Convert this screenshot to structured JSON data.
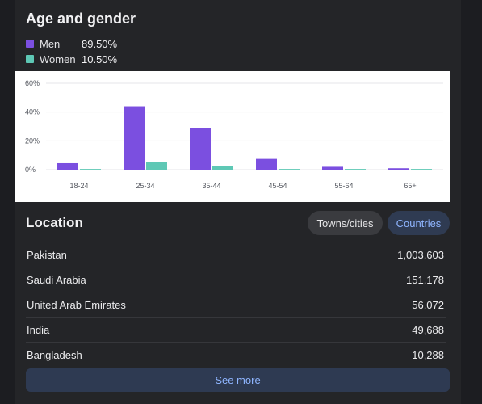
{
  "age_gender": {
    "title": "Age and gender",
    "legend": [
      {
        "label": "Men",
        "percent": "89.50%",
        "color": "#7b4fe0"
      },
      {
        "label": "Women",
        "percent": "10.50%",
        "color": "#5ec8b5"
      }
    ]
  },
  "chart_data": {
    "type": "bar",
    "categories": [
      "18-24",
      "25-34",
      "35-44",
      "45-54",
      "55-64",
      "65+"
    ],
    "series": [
      {
        "name": "Men",
        "color": "#7b4fe0",
        "values": [
          4.5,
          44,
          29,
          7.5,
          2,
          1
        ]
      },
      {
        "name": "Women",
        "color": "#5ec8b5",
        "values": [
          0.5,
          5.5,
          2.5,
          0.5,
          0.5,
          0.5
        ]
      }
    ],
    "yticks": [
      "0%",
      "20%",
      "40%",
      "60%"
    ],
    "ylim": [
      0,
      60
    ],
    "grid": true
  },
  "location": {
    "title": "Location",
    "tabs": [
      {
        "label": "Towns/cities",
        "active": false
      },
      {
        "label": "Countries",
        "active": true
      }
    ],
    "rows": [
      {
        "name": "Pakistan",
        "value": "1,003,603"
      },
      {
        "name": "Saudi Arabia",
        "value": "151,178"
      },
      {
        "name": "United Arab Emirates",
        "value": "56,072"
      },
      {
        "name": "India",
        "value": "49,688"
      },
      {
        "name": "Bangladesh",
        "value": "10,288"
      }
    ],
    "see_more": "See more"
  }
}
